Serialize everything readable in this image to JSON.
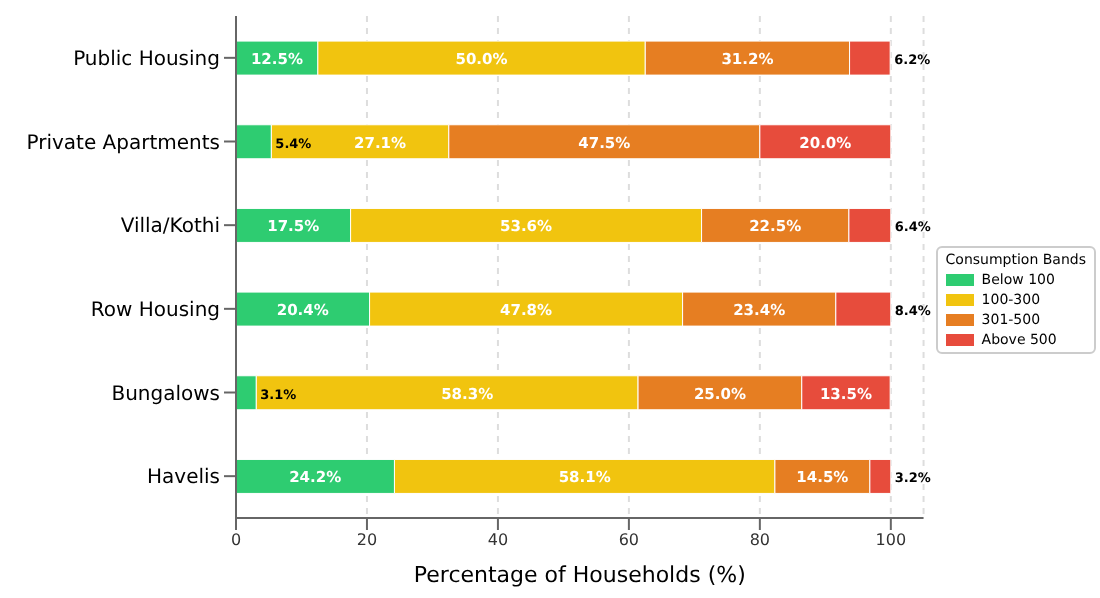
{
  "chart_data": {
    "type": "bar",
    "orientation": "horizontal",
    "stacked": true,
    "categories": [
      "Public Housing",
      "Private Apartments",
      "Villa/Kothi",
      "Row Housing",
      "Bungalows",
      "Havelis"
    ],
    "series": [
      {
        "name": "Below 100",
        "color": "#2ecc71",
        "values": [
          12.5,
          5.4,
          17.5,
          20.4,
          3.1,
          24.2
        ],
        "value_labels": [
          "12.5%",
          "5.4%",
          "17.5%",
          "20.4%",
          "3.1%",
          "24.2%"
        ]
      },
      {
        "name": "100-300",
        "color": "#f1c40f",
        "values": [
          50.0,
          27.1,
          53.6,
          47.8,
          58.3,
          58.1
        ],
        "value_labels": [
          "50.0%",
          "27.1%",
          "53.6%",
          "47.8%",
          "58.3%",
          "58.1%"
        ]
      },
      {
        "name": "301-500",
        "color": "#e67e22",
        "values": [
          31.2,
          47.5,
          22.5,
          23.4,
          25.0,
          14.5
        ],
        "value_labels": [
          "31.2%",
          "47.5%",
          "22.5%",
          "23.4%",
          "25.0%",
          "14.5%"
        ]
      },
      {
        "name": "Above 500",
        "color": "#e74c3c",
        "values": [
          6.2,
          20.0,
          6.4,
          8.4,
          13.5,
          3.2
        ],
        "value_labels": [
          "6.2%",
          "20.0%",
          "6.4%",
          "8.4%",
          "13.5%",
          "3.2%"
        ]
      }
    ],
    "xlim": [
      0,
      105
    ],
    "xticks": [
      0,
      20,
      40,
      60,
      80,
      100
    ],
    "xlabel": "Percentage of Households (%)",
    "legend_title": "Consumption Bands",
    "legend": "right",
    "grid": "x"
  }
}
